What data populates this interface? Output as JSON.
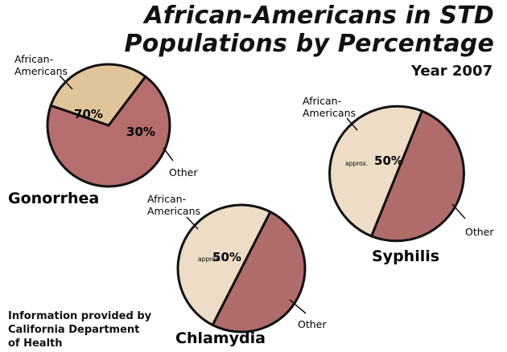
{
  "title": {
    "line1": "African-Americans in STD",
    "line2": "Populations by Percentage"
  },
  "subtitle": "Year 2007",
  "source": {
    "line1": "Information provided by",
    "line2": "California Department",
    "line3": "of Health"
  },
  "colors": {
    "african_americans_gonorrhea": "#b56d6d",
    "other_gonorrhea": "#e2c49b",
    "african_americans": "#b06b6b",
    "other": "#eddcc6",
    "outline": "#111111"
  },
  "chart_data": [
    {
      "type": "pie",
      "title": "Gonorrhea",
      "labels": [
        "African-\nAmericans",
        "Other"
      ],
      "values": [
        70,
        30
      ],
      "value_labels": [
        "70%",
        "30%"
      ],
      "approx_label": ""
    },
    {
      "type": "pie",
      "title": "Chlamydia",
      "labels": [
        "African-\nAmericans",
        "Other"
      ],
      "values": [
        50,
        50
      ],
      "value_labels": [
        "50%",
        ""
      ],
      "approx_label": "approx."
    },
    {
      "type": "pie",
      "title": "Syphilis",
      "labels": [
        "African-\nAmericans",
        "Other"
      ],
      "values": [
        50,
        50
      ],
      "value_labels": [
        "50%",
        ""
      ],
      "approx_label": "approx."
    }
  ]
}
